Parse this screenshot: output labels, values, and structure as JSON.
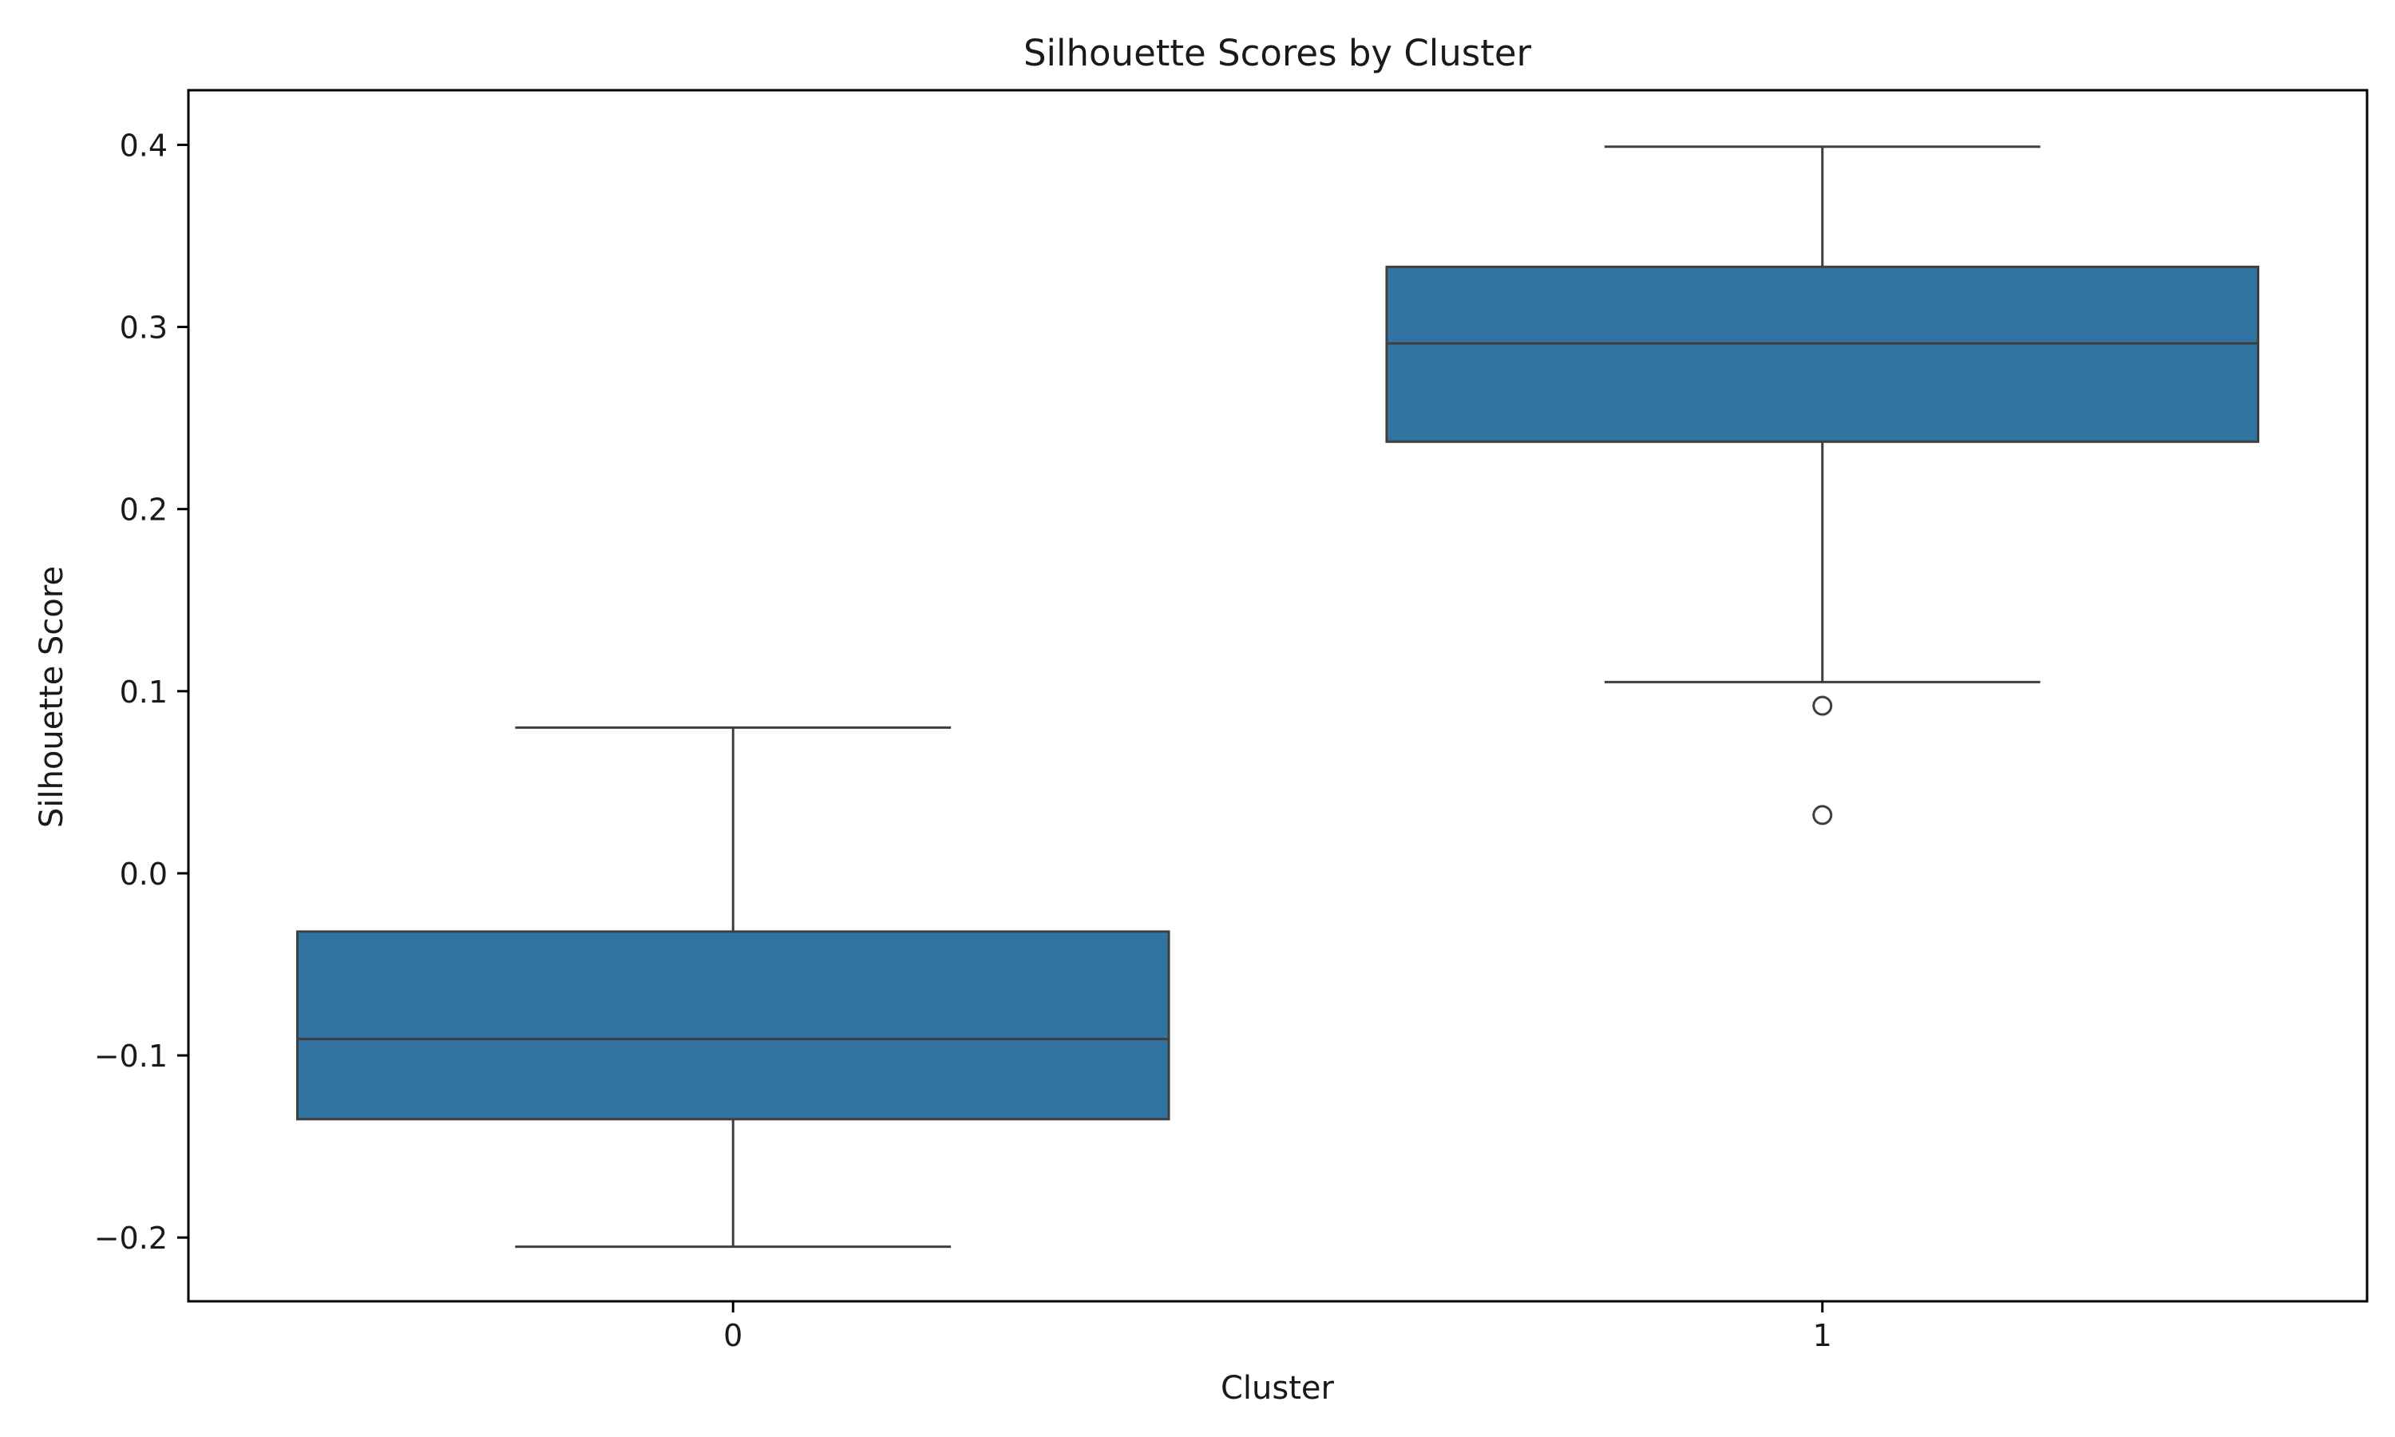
{
  "chart_data": {
    "type": "box",
    "title": "Silhouette Scores by Cluster",
    "xlabel": "Cluster",
    "ylabel": "Silhouette Score",
    "categories": [
      "0",
      "1"
    ],
    "ylim": [
      -0.235,
      0.43
    ],
    "yticks": [
      -0.2,
      -0.1,
      0.0,
      0.1,
      0.2,
      0.3,
      0.4
    ],
    "ytick_labels": [
      "−0.2",
      "−0.1",
      "0.0",
      "0.1",
      "0.2",
      "0.3",
      "0.4"
    ],
    "grid": false,
    "legend": "none",
    "boxes": [
      {
        "category": "0",
        "whisker_low": -0.205,
        "q1": -0.135,
        "median": -0.091,
        "q3": -0.032,
        "whisker_high": 0.08,
        "outliers": []
      },
      {
        "category": "1",
        "whisker_low": 0.105,
        "q1": 0.237,
        "median": 0.291,
        "q3": 0.333,
        "whisker_high": 0.399,
        "outliers": [
          0.092,
          0.032
        ]
      }
    ],
    "colors": {
      "box_fill": "#3274a1",
      "box_edge": "#3f3f3f",
      "axes": "#000000"
    }
  }
}
